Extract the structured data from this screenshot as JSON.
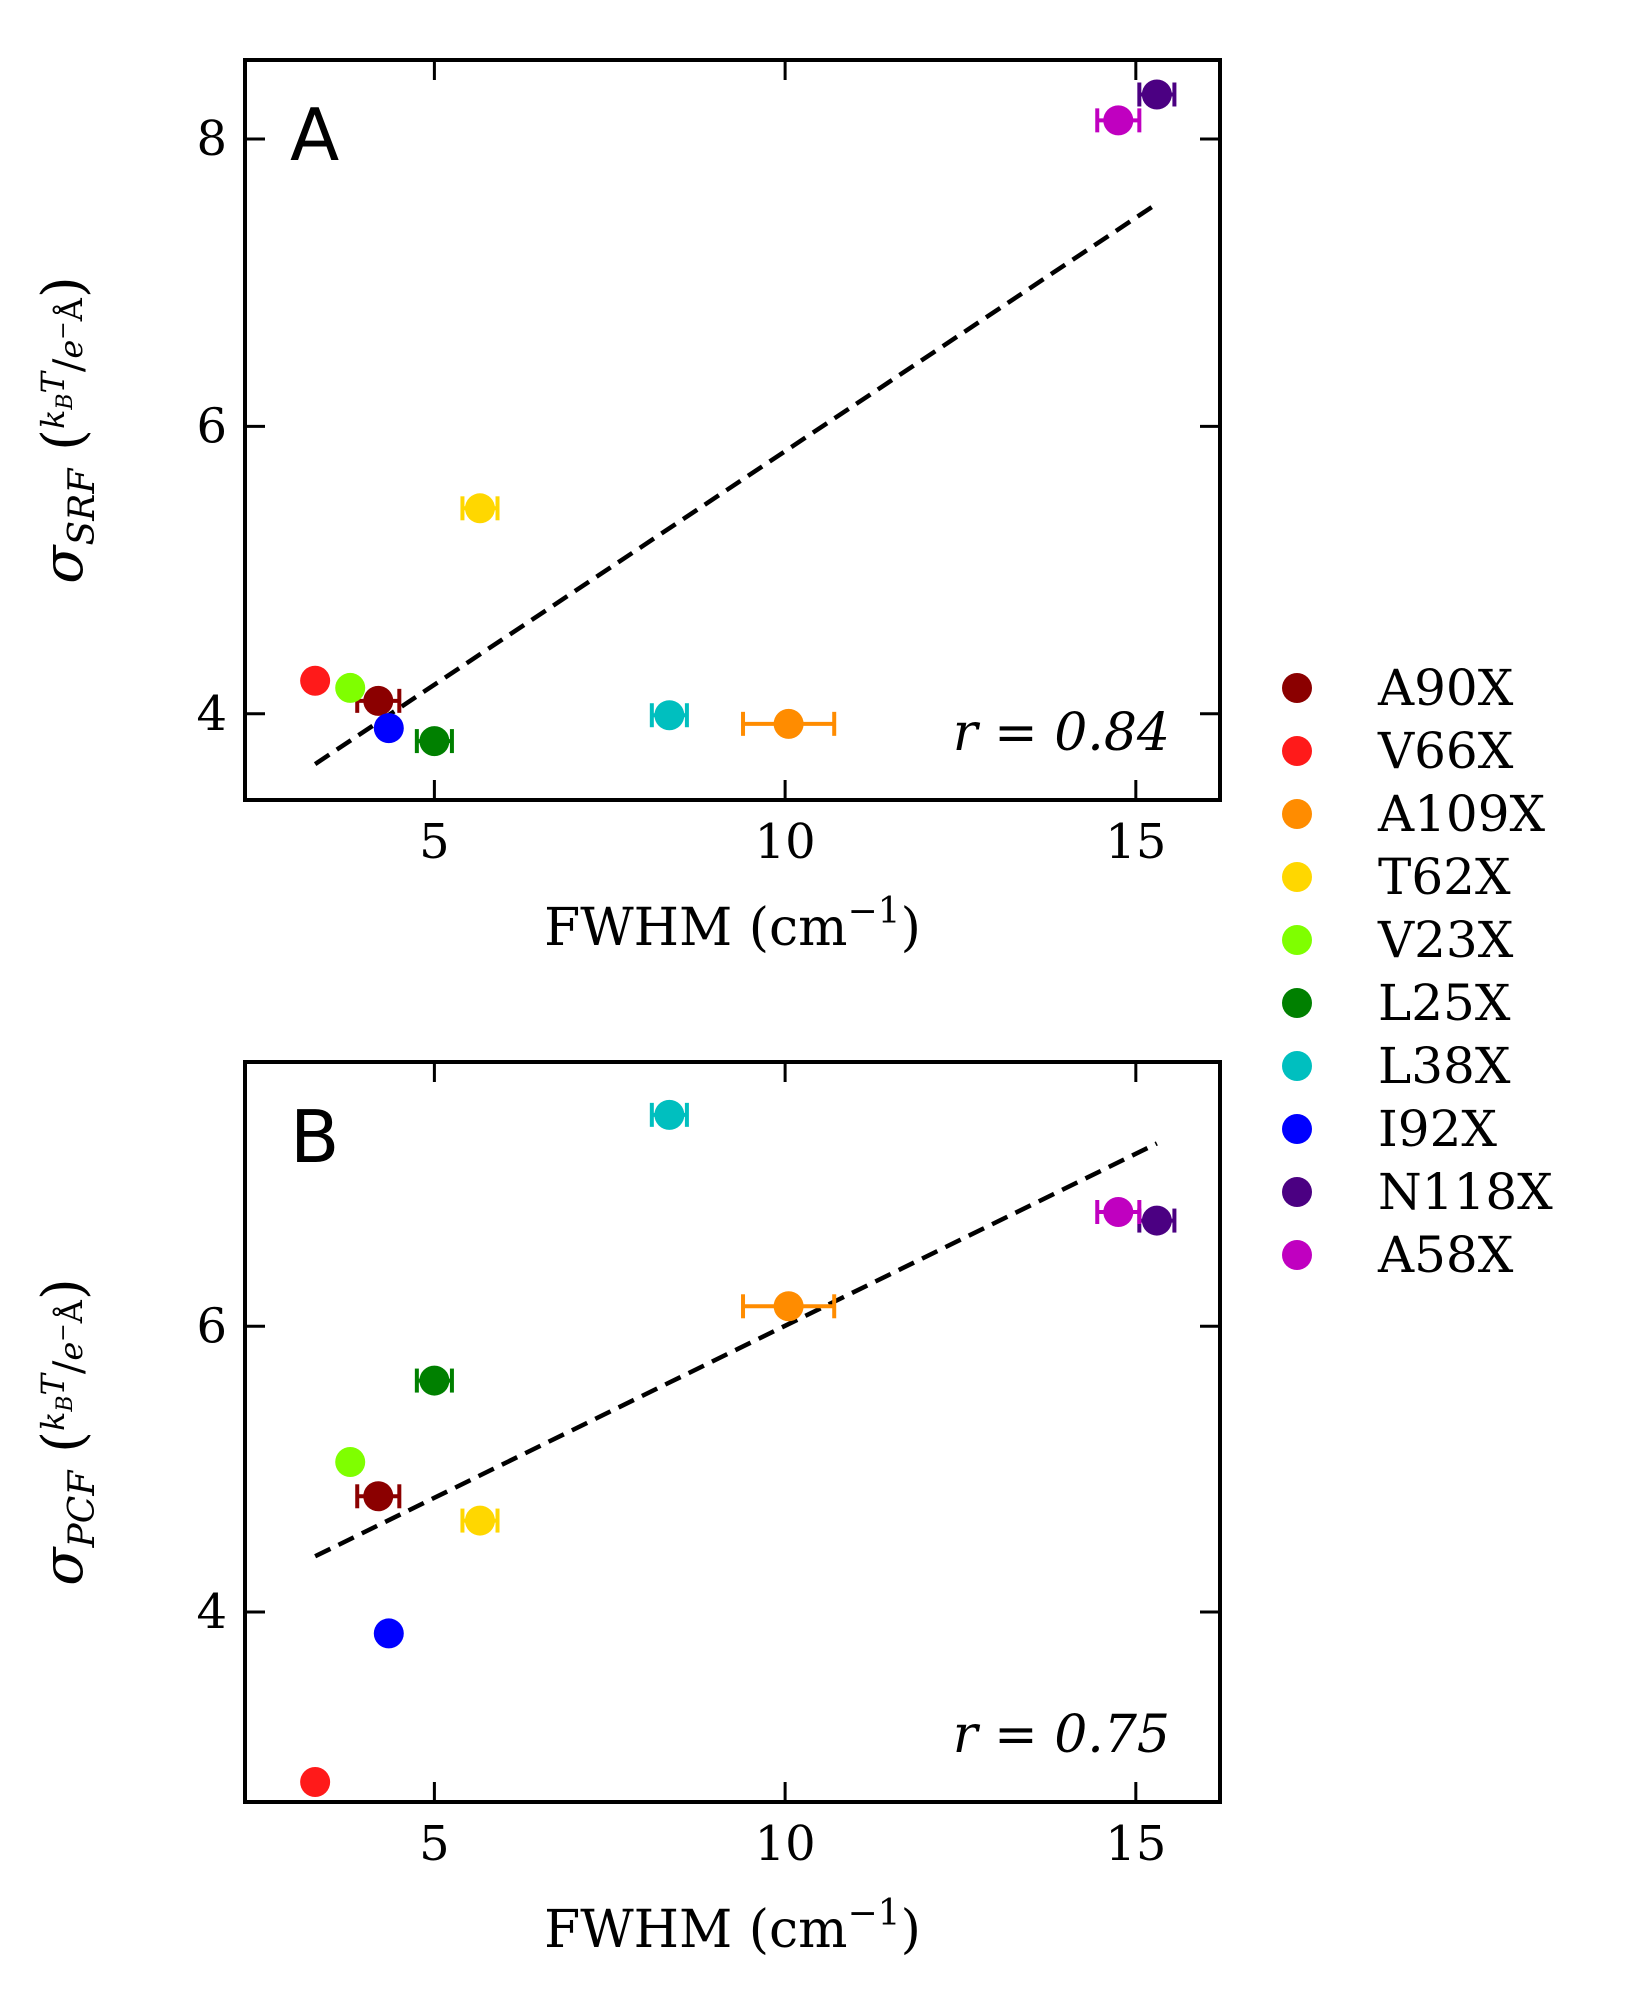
{
  "colors": {
    "A90X": "#8B0000",
    "V66X": "#FF1A1A",
    "A109X": "#FF8C00",
    "T62X": "#FFD700",
    "V23X": "#7FFF00",
    "L25X": "#008000",
    "L38X": "#00BFBF",
    "I92X": "#0000FF",
    "N118X": "#4B0082",
    "A58X": "#C000C0"
  },
  "chart_data": [
    {
      "type": "scatter",
      "panel_label": "A",
      "xlabel": "FWHM (cm",
      "xlabel_sup": "−1",
      "xlabel_close": ")",
      "ylabel_main": "σ",
      "ylabel_sub": "SRF",
      "ylabel_unit_num": "k",
      "ylabel_unit_num_sub": "B",
      "ylabel_unit_num_tail": "T",
      "ylabel_unit_den": "e",
      "ylabel_unit_den_sup": "−",
      "ylabel_unit_den_tail": "Å",
      "xlim": [
        2.3,
        16.2
      ],
      "ylim": [
        3.4,
        8.55
      ],
      "xticks": [
        5,
        10,
        15
      ],
      "yticks": [
        4,
        6,
        8
      ],
      "annotation": "r = 0.84",
      "fit_line": {
        "x": [
          3.3,
          15.3
        ],
        "y": [
          3.65,
          7.55
        ]
      },
      "points": [
        {
          "name": "A90X",
          "x": 4.2,
          "y": 4.09,
          "xerr": 0.3
        },
        {
          "name": "V66X",
          "x": 3.3,
          "y": 4.23,
          "xerr": 0
        },
        {
          "name": "A109X",
          "x": 10.05,
          "y": 3.93,
          "xerr": 0.65
        },
        {
          "name": "T62X",
          "x": 5.65,
          "y": 5.43,
          "xerr": 0.25
        },
        {
          "name": "V23X",
          "x": 3.8,
          "y": 4.18,
          "xerr": 0
        },
        {
          "name": "L25X",
          "x": 5.0,
          "y": 3.81,
          "xerr": 0.25
        },
        {
          "name": "L38X",
          "x": 8.35,
          "y": 3.99,
          "xerr": 0.25
        },
        {
          "name": "I92X",
          "x": 4.35,
          "y": 3.9,
          "xerr": 0
        },
        {
          "name": "N118X",
          "x": 15.3,
          "y": 8.31,
          "xerr": 0.25
        },
        {
          "name": "A58X",
          "x": 14.75,
          "y": 8.13,
          "xerr": 0.3
        }
      ]
    },
    {
      "type": "scatter",
      "panel_label": "B",
      "xlabel": "FWHM (cm",
      "xlabel_sup": "−1",
      "xlabel_close": ")",
      "ylabel_main": "σ",
      "ylabel_sub": "PCF",
      "ylabel_unit_num": "k",
      "ylabel_unit_num_sub": "B",
      "ylabel_unit_num_tail": "T",
      "ylabel_unit_den": "e",
      "ylabel_unit_den_sup": "−",
      "ylabel_unit_den_tail": "Å",
      "xlim": [
        2.3,
        16.2
      ],
      "ylim": [
        2.67,
        7.85
      ],
      "xticks": [
        5,
        10,
        15
      ],
      "yticks": [
        4,
        6
      ],
      "annotation": "r = 0.75",
      "fit_line": {
        "x": [
          3.3,
          15.3
        ],
        "y": [
          4.39,
          7.28
        ]
      },
      "points": [
        {
          "name": "A90X",
          "x": 4.2,
          "y": 4.81,
          "xerr": 0.3
        },
        {
          "name": "V66X",
          "x": 3.3,
          "y": 2.81,
          "xerr": 0
        },
        {
          "name": "A109X",
          "x": 10.05,
          "y": 6.14,
          "xerr": 0.65
        },
        {
          "name": "T62X",
          "x": 5.65,
          "y": 4.64,
          "xerr": 0.25
        },
        {
          "name": "V23X",
          "x": 3.8,
          "y": 5.05,
          "xerr": 0
        },
        {
          "name": "L25X",
          "x": 5.0,
          "y": 5.62,
          "xerr": 0.25
        },
        {
          "name": "L38X",
          "x": 8.35,
          "y": 7.48,
          "xerr": 0.25
        },
        {
          "name": "I92X",
          "x": 4.35,
          "y": 3.85,
          "xerr": 0
        },
        {
          "name": "N118X",
          "x": 15.3,
          "y": 6.74,
          "xerr": 0.25
        },
        {
          "name": "A58X",
          "x": 14.75,
          "y": 6.8,
          "xerr": 0.3
        }
      ]
    }
  ],
  "legend": {
    "placement": "right",
    "entries": [
      "A90X",
      "V66X",
      "A109X",
      "T62X",
      "V23X",
      "L25X",
      "L38X",
      "I92X",
      "N118X",
      "A58X"
    ]
  }
}
